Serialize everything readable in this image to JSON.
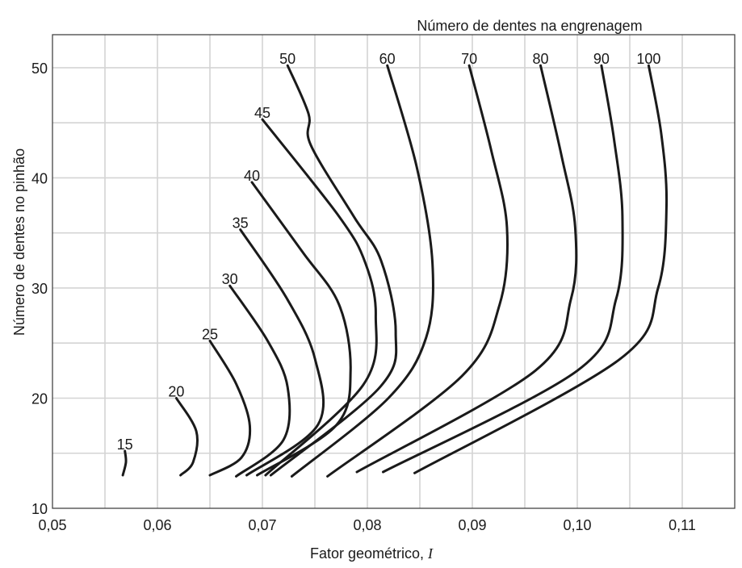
{
  "chart_data": {
    "type": "line",
    "legend_title": "Número de dentes na engrenagem",
    "xlabel": "Fator geométrico,",
    "xlabel_symbol": "I",
    "ylabel": "Número de dentes no pinhão",
    "xlim": [
      0.05,
      0.115
    ],
    "ylim": [
      10,
      53
    ],
    "grid": true,
    "x_ticks": [
      0.05,
      0.06,
      0.07,
      0.08,
      0.09,
      0.1,
      0.11
    ],
    "x_tick_labels": [
      "0,05",
      "0,06",
      "0,07",
      "0,08",
      "0,09",
      "0,10",
      "0,11"
    ],
    "y_ticks": [
      10,
      20,
      30,
      40,
      50
    ],
    "y_tick_labels": [
      "10",
      "20",
      "30",
      "40",
      "50"
    ],
    "series": [
      {
        "name": "15",
        "points": [
          [
            0.0569,
            15.2
          ],
          [
            0.057,
            14.2
          ],
          [
            0.0567,
            13.0
          ]
        ]
      },
      {
        "name": "20",
        "points": [
          [
            0.0618,
            20.0
          ],
          [
            0.0637,
            17.0
          ],
          [
            0.0634,
            14.2
          ],
          [
            0.0622,
            13.0
          ]
        ]
      },
      {
        "name": "25",
        "points": [
          [
            0.065,
            25.2
          ],
          [
            0.0675,
            21.3
          ],
          [
            0.0688,
            17.5
          ],
          [
            0.068,
            14.6
          ],
          [
            0.065,
            13.0
          ]
        ]
      },
      {
        "name": "30",
        "points": [
          [
            0.0669,
            30.2
          ],
          [
            0.0705,
            25.2
          ],
          [
            0.0724,
            21.0
          ],
          [
            0.072,
            16.2
          ],
          [
            0.0675,
            12.9
          ]
        ]
      },
      {
        "name": "35",
        "points": [
          [
            0.0679,
            35.3
          ],
          [
            0.0723,
            29.1
          ],
          [
            0.075,
            23.6
          ],
          [
            0.0753,
            17.6
          ],
          [
            0.0685,
            13.0
          ]
        ]
      },
      {
        "name": "40",
        "points": [
          [
            0.069,
            39.6
          ],
          [
            0.0738,
            33.3
          ],
          [
            0.0773,
            28.5
          ],
          [
            0.0784,
            22.5
          ],
          [
            0.077,
            17.5
          ],
          [
            0.0695,
            13.0
          ]
        ]
      },
      {
        "name": "45",
        "points": [
          [
            0.07,
            45.3
          ],
          [
            0.0773,
            36.5
          ],
          [
            0.0798,
            32.3
          ],
          [
            0.0808,
            27.5
          ],
          [
            0.0796,
            21.2
          ],
          [
            0.0703,
            13.0
          ]
        ]
      },
      {
        "name": "50",
        "points": [
          [
            0.0724,
            50.2
          ],
          [
            0.0744,
            45.8
          ],
          [
            0.0746,
            43.0
          ],
          [
            0.0787,
            36.5
          ],
          [
            0.0813,
            32.5
          ],
          [
            0.0827,
            26.0
          ],
          [
            0.0812,
            21.0
          ],
          [
            0.0708,
            13.0
          ]
        ]
      },
      {
        "name": "60",
        "points": [
          [
            0.0819,
            50.2
          ],
          [
            0.0847,
            41.0
          ],
          [
            0.0862,
            32.3
          ],
          [
            0.0856,
            25.5
          ],
          [
            0.082,
            20.0
          ],
          [
            0.0728,
            12.9
          ]
        ]
      },
      {
        "name": "70",
        "points": [
          [
            0.0897,
            50.2
          ],
          [
            0.0918,
            42.5
          ],
          [
            0.0933,
            35.5
          ],
          [
            0.0926,
            28.5
          ],
          [
            0.089,
            22.0
          ],
          [
            0.0762,
            12.9
          ]
        ]
      },
      {
        "name": "80",
        "points": [
          [
            0.0965,
            50.2
          ],
          [
            0.0985,
            42.0
          ],
          [
            0.0998,
            35.5
          ],
          [
            0.0994,
            29.0
          ],
          [
            0.096,
            22.5
          ],
          [
            0.079,
            13.3
          ]
        ]
      },
      {
        "name": "90",
        "points": [
          [
            0.1023,
            50.2
          ],
          [
            0.1035,
            43.5
          ],
          [
            0.1043,
            36.5
          ],
          [
            0.1037,
            29.0
          ],
          [
            0.1,
            22.5
          ],
          [
            0.0815,
            13.3
          ]
        ]
      },
      {
        "name": "100",
        "points": [
          [
            0.1068,
            50.2
          ],
          [
            0.108,
            44.0
          ],
          [
            0.1085,
            37.5
          ],
          [
            0.1077,
            30.0
          ],
          [
            0.104,
            23.5
          ],
          [
            0.0845,
            13.2
          ]
        ]
      }
    ]
  }
}
